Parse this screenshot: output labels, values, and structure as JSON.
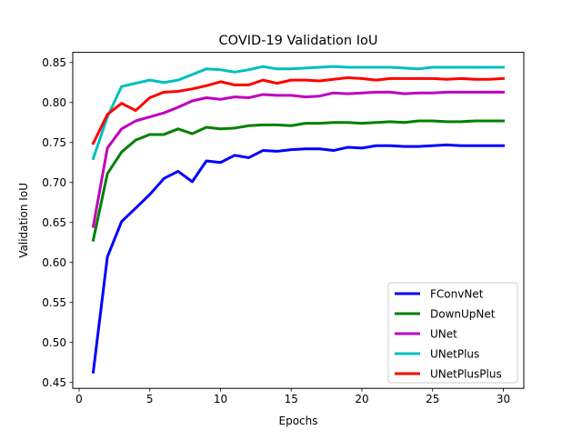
{
  "chart_data": {
    "type": "line",
    "title": "COVID-19 Validation IoU",
    "xlabel": "Epochs",
    "ylabel": "Validation IoU",
    "xlim": [
      -0.45,
      31.45
    ],
    "ylim": [
      0.4426,
      0.8627
    ],
    "xticks": [
      0,
      5,
      10,
      15,
      20,
      25,
      30
    ],
    "yticks": [
      0.45,
      0.5,
      0.55,
      0.6,
      0.65,
      0.7,
      0.75,
      0.8,
      0.85
    ],
    "xtick_labels": [
      "0",
      "5",
      "10",
      "15",
      "20",
      "25",
      "30"
    ],
    "ytick_labels": [
      "0.45",
      "0.50",
      "0.55",
      "0.60",
      "0.65",
      "0.70",
      "0.75",
      "0.80",
      "0.85"
    ],
    "grid": false,
    "legend_position": "lower-right",
    "x": [
      1,
      2,
      3,
      4,
      5,
      6,
      7,
      8,
      9,
      10,
      11,
      12,
      13,
      14,
      15,
      16,
      17,
      18,
      19,
      20,
      21,
      22,
      23,
      24,
      25,
      26,
      27,
      28,
      29,
      30
    ],
    "series": [
      {
        "name": "FConvNet",
        "color": "#0000ff",
        "values": [
          0.463,
          0.607,
          0.651,
          0.668,
          0.685,
          0.705,
          0.714,
          0.701,
          0.727,
          0.725,
          0.734,
          0.731,
          0.74,
          0.739,
          0.741,
          0.742,
          0.742,
          0.74,
          0.744,
          0.743,
          0.746,
          0.746,
          0.745,
          0.745,
          0.746,
          0.747,
          0.746,
          0.746,
          0.746,
          0.746
        ]
      },
      {
        "name": "DownUpNet",
        "color": "#008000",
        "values": [
          0.628,
          0.711,
          0.738,
          0.753,
          0.76,
          0.76,
          0.767,
          0.761,
          0.769,
          0.767,
          0.768,
          0.771,
          0.772,
          0.772,
          0.771,
          0.774,
          0.774,
          0.775,
          0.775,
          0.774,
          0.775,
          0.776,
          0.775,
          0.777,
          0.777,
          0.776,
          0.776,
          0.777,
          0.777,
          0.777
        ]
      },
      {
        "name": "UNet",
        "color": "#bf00bf",
        "values": [
          0.645,
          0.743,
          0.767,
          0.777,
          0.782,
          0.787,
          0.794,
          0.802,
          0.806,
          0.804,
          0.807,
          0.806,
          0.81,
          0.809,
          0.809,
          0.807,
          0.808,
          0.812,
          0.811,
          0.812,
          0.813,
          0.813,
          0.811,
          0.812,
          0.812,
          0.813,
          0.813,
          0.813,
          0.813,
          0.813
        ]
      },
      {
        "name": "UNetPlus",
        "color": "#00bfbf",
        "values": [
          0.73,
          0.782,
          0.82,
          0.824,
          0.828,
          0.825,
          0.828,
          0.835,
          0.842,
          0.841,
          0.838,
          0.841,
          0.845,
          0.842,
          0.842,
          0.843,
          0.844,
          0.845,
          0.844,
          0.844,
          0.844,
          0.844,
          0.843,
          0.842,
          0.844,
          0.844,
          0.844,
          0.844,
          0.844,
          0.844
        ]
      },
      {
        "name": "UNetPlusPlus",
        "color": "#ff0000",
        "values": [
          0.749,
          0.785,
          0.799,
          0.79,
          0.806,
          0.813,
          0.814,
          0.817,
          0.821,
          0.826,
          0.822,
          0.822,
          0.828,
          0.824,
          0.828,
          0.828,
          0.827,
          0.829,
          0.831,
          0.83,
          0.828,
          0.83,
          0.83,
          0.83,
          0.83,
          0.829,
          0.83,
          0.829,
          0.829,
          0.83
        ]
      }
    ]
  }
}
